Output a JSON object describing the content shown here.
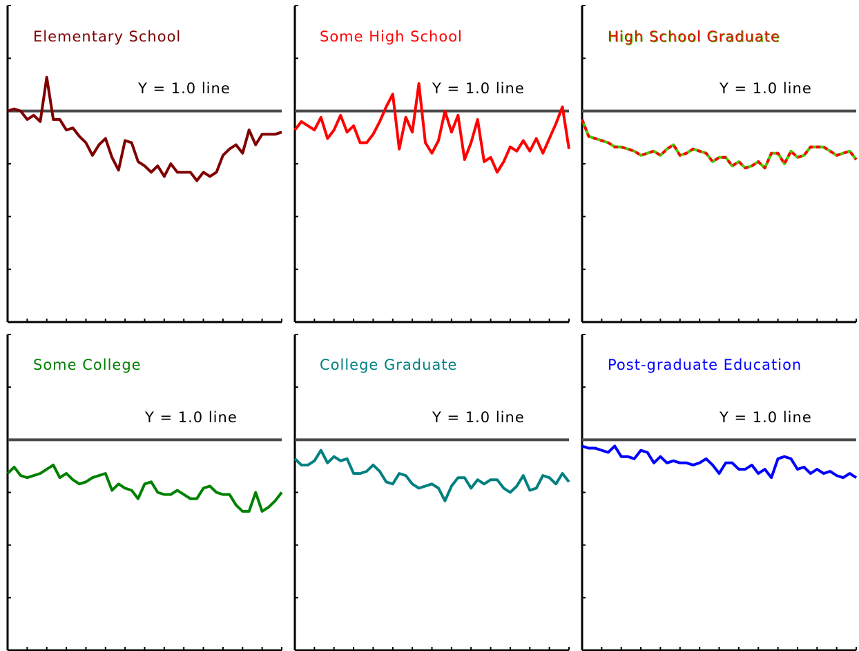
{
  "reference_label": "Y = 1.0 line",
  "chart_data": [
    {
      "type": "line",
      "title": "Elementary School",
      "xlabel": "",
      "ylabel": "",
      "ylim": [
        0,
        1.5
      ],
      "reference_y": 1.0,
      "grid": false,
      "series": [
        {
          "color": "#7f0000",
          "dash": false,
          "values": [
            1.0,
            1.01,
            1.0,
            0.96,
            0.98,
            0.95,
            1.16,
            0.96,
            0.96,
            0.91,
            0.92,
            0.88,
            0.85,
            0.79,
            0.84,
            0.87,
            0.78,
            0.72,
            0.86,
            0.85,
            0.76,
            0.74,
            0.71,
            0.74,
            0.69,
            0.75,
            0.71,
            0.71,
            0.71,
            0.67,
            0.71,
            0.69,
            0.71,
            0.79,
            0.82,
            0.84,
            0.8,
            0.91,
            0.84,
            0.89,
            0.89,
            0.89,
            0.9
          ]
        }
      ]
    },
    {
      "type": "line",
      "title": "Some High School",
      "xlabel": "",
      "ylabel": "",
      "ylim": [
        0,
        1.5
      ],
      "reference_y": 1.0,
      "grid": false,
      "series": [
        {
          "color": "#ff0000",
          "dash": false,
          "values": [
            0.91,
            0.95,
            0.93,
            0.91,
            0.97,
            0.87,
            0.91,
            0.98,
            0.9,
            0.93,
            0.85,
            0.85,
            0.89,
            0.95,
            1.02,
            1.08,
            0.82,
            0.97,
            0.9,
            1.13,
            0.85,
            0.8,
            0.86,
            1.0,
            0.9,
            0.98,
            0.77,
            0.85,
            0.96,
            0.76,
            0.78,
            0.71,
            0.76,
            0.83,
            0.81,
            0.86,
            0.81,
            0.87,
            0.8,
            0.87,
            0.94,
            1.02,
            0.82
          ]
        }
      ]
    },
    {
      "type": "line",
      "title": "High School Graduate",
      "xlabel": "",
      "ylabel": "",
      "ylim": [
        0,
        1.5
      ],
      "reference_y": 1.0,
      "grid": false,
      "series": [
        {
          "color": "#ff0000",
          "dash": true,
          "dash_color": "#44cc00",
          "values": [
            0.96,
            0.88,
            0.87,
            0.86,
            0.85,
            0.83,
            0.83,
            0.82,
            0.81,
            0.79,
            0.8,
            0.81,
            0.79,
            0.82,
            0.84,
            0.79,
            0.8,
            0.82,
            0.81,
            0.8,
            0.76,
            0.78,
            0.78,
            0.74,
            0.76,
            0.73,
            0.74,
            0.76,
            0.73,
            0.8,
            0.8,
            0.75,
            0.81,
            0.78,
            0.79,
            0.83,
            0.83,
            0.83,
            0.81,
            0.79,
            0.8,
            0.81,
            0.77
          ]
        }
      ]
    },
    {
      "type": "line",
      "title": "Some College",
      "xlabel": "",
      "ylabel": "",
      "ylim": [
        0,
        1.5
      ],
      "reference_y": 1.0,
      "grid": false,
      "series": [
        {
          "color": "#008000",
          "dash": false,
          "values": [
            0.84,
            0.87,
            0.83,
            0.82,
            0.83,
            0.84,
            0.86,
            0.88,
            0.82,
            0.84,
            0.81,
            0.79,
            0.8,
            0.82,
            0.83,
            0.84,
            0.76,
            0.79,
            0.77,
            0.76,
            0.72,
            0.79,
            0.8,
            0.75,
            0.74,
            0.74,
            0.76,
            0.74,
            0.72,
            0.72,
            0.77,
            0.78,
            0.75,
            0.74,
            0.74,
            0.69,
            0.66,
            0.66,
            0.75,
            0.66,
            0.68,
            0.71,
            0.75
          ]
        }
      ]
    },
    {
      "type": "line",
      "title": "College Graduate",
      "xlabel": "",
      "ylabel": "",
      "ylim": [
        0,
        1.5
      ],
      "reference_y": 1.0,
      "grid": false,
      "series": [
        {
          "color": "#008080",
          "dash": false,
          "values": [
            0.91,
            0.88,
            0.88,
            0.9,
            0.95,
            0.89,
            0.92,
            0.9,
            0.91,
            0.84,
            0.84,
            0.85,
            0.88,
            0.85,
            0.8,
            0.79,
            0.84,
            0.83,
            0.79,
            0.77,
            0.78,
            0.79,
            0.77,
            0.71,
            0.78,
            0.82,
            0.82,
            0.77,
            0.81,
            0.79,
            0.81,
            0.81,
            0.77,
            0.75,
            0.78,
            0.83,
            0.76,
            0.77,
            0.83,
            0.82,
            0.79,
            0.84,
            0.8
          ]
        }
      ]
    },
    {
      "type": "line",
      "title": "Post-graduate Education",
      "xlabel": "",
      "ylabel": "",
      "ylim": [
        0,
        1.5
      ],
      "reference_y": 1.0,
      "grid": false,
      "series": [
        {
          "color": "#0000ff",
          "dash": false,
          "values": [
            0.97,
            0.96,
            0.96,
            0.95,
            0.94,
            0.97,
            0.92,
            0.92,
            0.91,
            0.95,
            0.94,
            0.89,
            0.92,
            0.89,
            0.9,
            0.89,
            0.89,
            0.88,
            0.89,
            0.91,
            0.88,
            0.84,
            0.89,
            0.89,
            0.86,
            0.86,
            0.88,
            0.84,
            0.86,
            0.82,
            0.91,
            0.92,
            0.91,
            0.86,
            0.87,
            0.84,
            0.86,
            0.84,
            0.85,
            0.83,
            0.82,
            0.84,
            0.82
          ]
        }
      ]
    }
  ]
}
